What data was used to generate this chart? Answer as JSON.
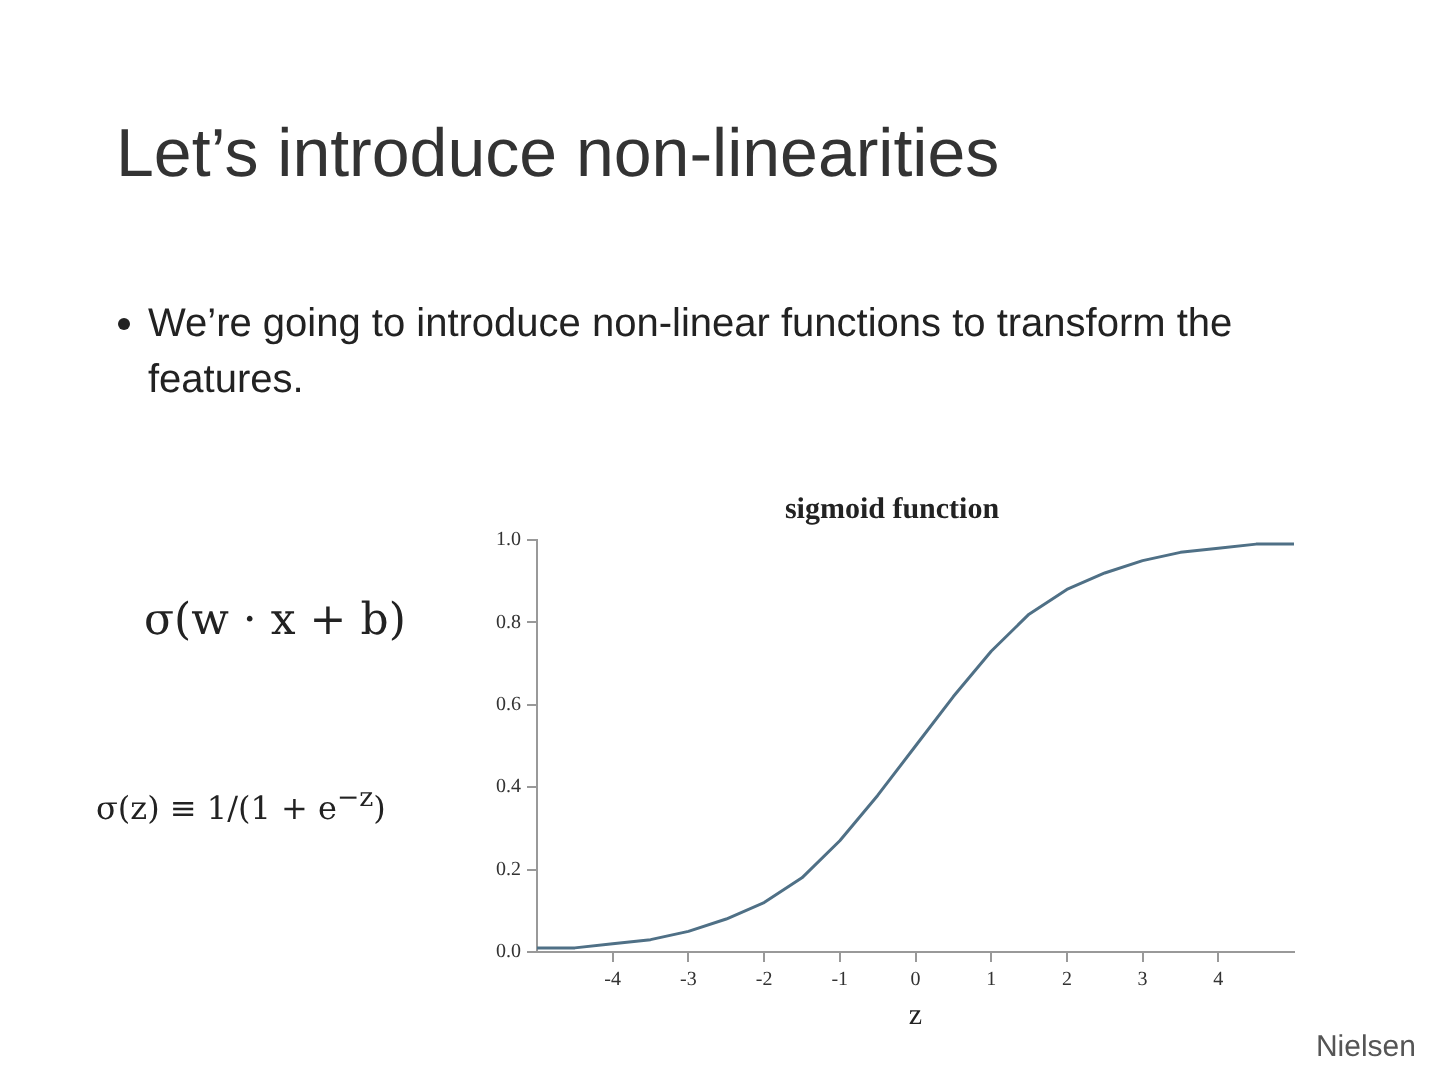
{
  "chart_data": {
    "type": "line",
    "title": "sigmoid function",
    "xlabel": "z",
    "x": [
      -5,
      -4.5,
      -4,
      -3.5,
      -3,
      -2.5,
      -2,
      -1.5,
      -1,
      -0.5,
      0,
      0.5,
      1,
      1.5,
      2,
      2.5,
      3,
      3.5,
      4,
      4.5,
      5
    ],
    "series": [
      {
        "color": "#4f7086",
        "values": [
          0.01,
          0.01,
          0.02,
          0.03,
          0.05,
          0.08,
          0.12,
          0.18,
          0.27,
          0.38,
          0.5,
          0.62,
          0.73,
          0.82,
          0.88,
          0.92,
          0.95,
          0.97,
          0.98,
          0.99,
          0.99
        ]
      }
    ],
    "xlim": [
      -5,
      5
    ],
    "xticks": [
      -4,
      -3,
      -2,
      -1,
      0,
      1,
      2,
      3,
      4
    ],
    "ylim": [
      0,
      1
    ],
    "yticks": [
      {
        "value": 0,
        "label": "0.0"
      },
      {
        "value": 0.2,
        "label": "0.2"
      },
      {
        "value": 0.4,
        "label": "0.4"
      },
      {
        "value": 0.6,
        "label": "0.6"
      },
      {
        "value": 0.8,
        "label": "0.8"
      },
      {
        "value": 1,
        "label": "1.0"
      }
    ],
    "legend": false,
    "marker": "none",
    "line_style": "solid",
    "annotations": [
      "Let’s introduce non-linearities",
      "We’re going to introduce non-linear functions to transform the features.",
      "σ(w · x + b)",
      "σ(z) ≡ 1/(1 + e$^{−z}$)",
      "Nielsen"
    ]
  }
}
